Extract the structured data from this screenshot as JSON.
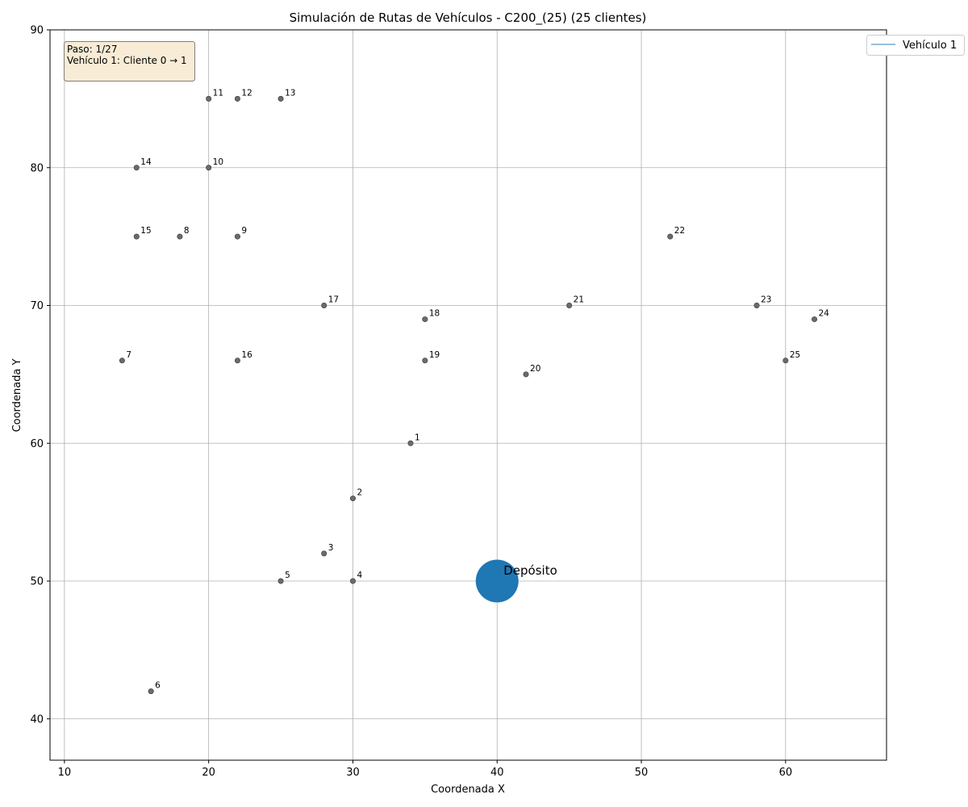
{
  "chart_data": {
    "type": "scatter",
    "title": "Simulación de Rutas de Vehículos - C200_(25) (25 clientes)",
    "xlabel": "Coordenada X",
    "ylabel": "Coordenada Y",
    "xlim": [
      9,
      67
    ],
    "ylim": [
      37,
      90
    ],
    "xticks": [
      10,
      20,
      30,
      40,
      50,
      60
    ],
    "yticks": [
      40,
      50,
      60,
      70,
      80,
      90
    ],
    "grid": true,
    "legend_position": "top-right-outside",
    "legend": [
      {
        "name": "Vehículo 1",
        "color": "#7aa8d4"
      }
    ],
    "depot": {
      "label": "Depósito",
      "x": 40,
      "y": 50,
      "color": "#1f77b4"
    },
    "customer_color": "#6b6b6b",
    "customers": [
      {
        "id": "1",
        "x": 34,
        "y": 60
      },
      {
        "id": "2",
        "x": 30,
        "y": 56
      },
      {
        "id": "3",
        "x": 28,
        "y": 52
      },
      {
        "id": "4",
        "x": 30,
        "y": 50
      },
      {
        "id": "5",
        "x": 25,
        "y": 50
      },
      {
        "id": "6",
        "x": 16,
        "y": 42
      },
      {
        "id": "7",
        "x": 14,
        "y": 66
      },
      {
        "id": "8",
        "x": 18,
        "y": 75
      },
      {
        "id": "9",
        "x": 22,
        "y": 75
      },
      {
        "id": "10",
        "x": 20,
        "y": 80
      },
      {
        "id": "11",
        "x": 20,
        "y": 85
      },
      {
        "id": "12",
        "x": 22,
        "y": 85
      },
      {
        "id": "13",
        "x": 25,
        "y": 85
      },
      {
        "id": "14",
        "x": 15,
        "y": 80
      },
      {
        "id": "15",
        "x": 15,
        "y": 75
      },
      {
        "id": "16",
        "x": 22,
        "y": 66
      },
      {
        "id": "17",
        "x": 28,
        "y": 70
      },
      {
        "id": "18",
        "x": 35,
        "y": 69
      },
      {
        "id": "19",
        "x": 35,
        "y": 66
      },
      {
        "id": "20",
        "x": 42,
        "y": 65
      },
      {
        "id": "21",
        "x": 45,
        "y": 70
      },
      {
        "id": "22",
        "x": 52,
        "y": 75
      },
      {
        "id": "23",
        "x": 58,
        "y": 70
      },
      {
        "id": "24",
        "x": 62,
        "y": 69
      },
      {
        "id": "25",
        "x": 60,
        "y": 66
      }
    ],
    "status": {
      "line1": "Paso: 1/27",
      "line2": "Vehículo 1: Cliente 0 → 1"
    }
  }
}
